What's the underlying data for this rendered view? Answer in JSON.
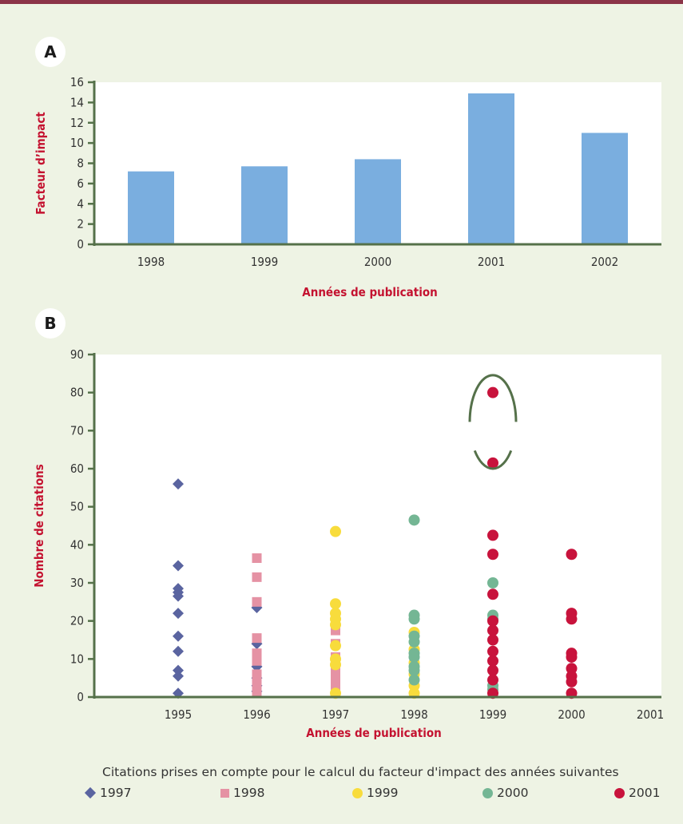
{
  "panel_a": {
    "badge": "A"
  },
  "panel_b": {
    "badge": "B"
  },
  "colors": {
    "series_1997": "#5a64a0",
    "series_1998": "#e592a4",
    "series_1999": "#f8dc3c",
    "series_2000": "#74b694",
    "series_2001": "#c8133c",
    "bar": "#7aaedf",
    "axis": "#55714a",
    "axis_title": "#c41230"
  },
  "chart_data": [
    {
      "type": "bar",
      "ylabel": "Facteur d’impact",
      "xlabel": "Années de publication",
      "categories": [
        "1998",
        "1999",
        "2000",
        "2001",
        "2002"
      ],
      "values": [
        7.2,
        7.7,
        8.4,
        14.9,
        11.0
      ],
      "ylim": [
        0,
        16
      ],
      "yticks": [
        0,
        2,
        4,
        6,
        8,
        10,
        12,
        14,
        16
      ],
      "grid": false
    },
    {
      "type": "scatter",
      "ylabel": "Nombre de citations",
      "xlabel": "Années de publication",
      "x_ticks": [
        "1995",
        "1996",
        "1997",
        "1998",
        "1999",
        "2000",
        "2001"
      ],
      "ylim": [
        0,
        90
      ],
      "yticks": [
        0,
        10,
        20,
        30,
        40,
        50,
        60,
        70,
        80,
        90
      ],
      "legend_title": "Citations prises en compte pour le calcul du facteur d'impact des années suivantes",
      "legend_position": "bottom",
      "highlight": {
        "x": "1999",
        "y_range": [
          60,
          85
        ],
        "shape": "ellipse"
      },
      "series": [
        {
          "name": "1997",
          "marker": "diamond",
          "points": [
            [
              "1995",
              56
            ],
            [
              "1995",
              34.5
            ],
            [
              "1995",
              28.5
            ],
            [
              "1995",
              27.5
            ],
            [
              "1995",
              26.5
            ],
            [
              "1995",
              22
            ],
            [
              "1995",
              16
            ],
            [
              "1995",
              12
            ],
            [
              "1995",
              7
            ],
            [
              "1995",
              5.5
            ],
            [
              "1995",
              1
            ],
            [
              "1996",
              23.5
            ],
            [
              "1996",
              14
            ],
            [
              "1996",
              8
            ],
            [
              "1996",
              5
            ],
            [
              "1996",
              3
            ],
            [
              "1996",
              1.5
            ]
          ]
        },
        {
          "name": "1998",
          "marker": "square",
          "points": [
            [
              "1996",
              36.5
            ],
            [
              "1996",
              31.5
            ],
            [
              "1996",
              25
            ],
            [
              "1996",
              15.5
            ],
            [
              "1996",
              11.5
            ],
            [
              "1996",
              9.5
            ],
            [
              "1996",
              6
            ],
            [
              "1996",
              4
            ],
            [
              "1996",
              2.5
            ],
            [
              "1996",
              1
            ],
            [
              "1997",
              17.5
            ],
            [
              "1997",
              14
            ],
            [
              "1997",
              10.5
            ],
            [
              "1997",
              8
            ],
            [
              "1997",
              6
            ],
            [
              "1997",
              4
            ],
            [
              "1997",
              2.5
            ],
            [
              "1997",
              1
            ]
          ]
        },
        {
          "name": "1999",
          "marker": "circle",
          "points": [
            [
              "1997",
              43.5
            ],
            [
              "1997",
              24.5
            ],
            [
              "1997",
              22
            ],
            [
              "1997",
              20.5
            ],
            [
              "1997",
              19
            ],
            [
              "1997",
              13.5
            ],
            [
              "1997",
              10
            ],
            [
              "1997",
              8.5
            ],
            [
              "1997",
              1
            ],
            [
              "1998",
              17
            ],
            [
              "1998",
              12.5
            ],
            [
              "1998",
              9
            ],
            [
              "1998",
              6
            ],
            [
              "1998",
              3
            ],
            [
              "1998",
              1
            ]
          ]
        },
        {
          "name": "2000",
          "marker": "circle",
          "points": [
            [
              "1998",
              46.5
            ],
            [
              "1998",
              21.5
            ],
            [
              "1998",
              20.5
            ],
            [
              "1998",
              16
            ],
            [
              "1998",
              14.5
            ],
            [
              "1998",
              11.5
            ],
            [
              "1998",
              10.5
            ],
            [
              "1998",
              8
            ],
            [
              "1998",
              7
            ],
            [
              "1998",
              4.5
            ],
            [
              "1999",
              30
            ],
            [
              "1999",
              21.5
            ],
            [
              "1999",
              20.5
            ],
            [
              "1999",
              3
            ],
            [
              "1999",
              2
            ]
          ]
        },
        {
          "name": "2001",
          "marker": "circle",
          "points": [
            [
              "1999",
              80
            ],
            [
              "1999",
              61.5
            ],
            [
              "1999",
              42.5
            ],
            [
              "1999",
              37.5
            ],
            [
              "1999",
              27
            ],
            [
              "1999",
              20
            ],
            [
              "1999",
              17.5
            ],
            [
              "1999",
              15
            ],
            [
              "1999",
              12
            ],
            [
              "1999",
              9.5
            ],
            [
              "1999",
              7
            ],
            [
              "1999",
              4.5
            ],
            [
              "1999",
              1
            ],
            [
              "2000",
              37.5
            ],
            [
              "2000",
              22
            ],
            [
              "2000",
              20.5
            ],
            [
              "2000",
              11.5
            ],
            [
              "2000",
              10.5
            ],
            [
              "2000",
              7.5
            ],
            [
              "2000",
              5.5
            ],
            [
              "2000",
              4
            ],
            [
              "2000",
              1
            ]
          ]
        }
      ]
    }
  ]
}
